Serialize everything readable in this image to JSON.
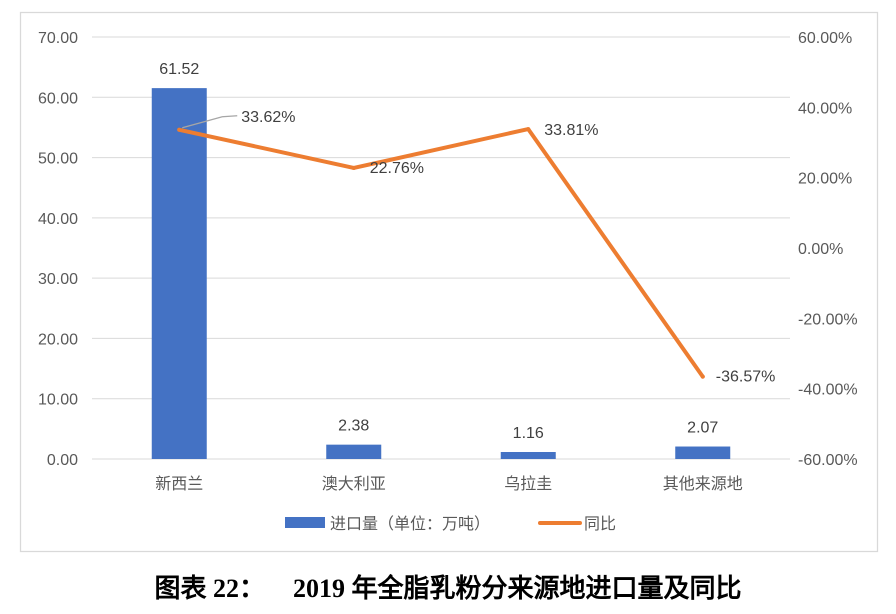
{
  "figure_caption": {
    "label": "图表 22：",
    "text": "2019 年全脂乳粉分来源地进口量及同比"
  },
  "chart_data": {
    "type": "bar",
    "title": "",
    "xlabel": "",
    "ylabel": "",
    "categories": [
      "新西兰",
      "澳大利亚",
      "乌拉圭",
      "其他来源地"
    ],
    "series": [
      {
        "name": "进口量（单位：万吨）",
        "type": "bar",
        "axis": "left",
        "color": "#4472C4",
        "values": [
          61.52,
          2.38,
          1.16,
          2.07
        ],
        "data_labels": [
          "61.52",
          "2.38",
          "1.16",
          "2.07"
        ]
      },
      {
        "name": "同比",
        "type": "line",
        "axis": "right",
        "color": "#ED7D31",
        "values": [
          33.62,
          22.76,
          33.81,
          -36.57
        ],
        "data_labels": [
          "33.62%",
          "22.76%",
          "33.81%",
          "-36.57%"
        ]
      }
    ],
    "y_axis": {
      "range": [
        0,
        70
      ],
      "ticks": [
        0,
        10,
        20,
        30,
        40,
        50,
        60,
        70
      ],
      "tick_labels": [
        "0.00",
        "10.00",
        "20.00",
        "30.00",
        "40.00",
        "50.00",
        "60.00",
        "70.00"
      ]
    },
    "y2_axis": {
      "range": [
        -60,
        60
      ],
      "ticks": [
        -60,
        -40,
        -20,
        0,
        20,
        40,
        60
      ],
      "tick_labels": [
        "-60.00%",
        "-40.00%",
        "-20.00%",
        "0.00%",
        "20.00%",
        "40.00%",
        "60.00%"
      ]
    },
    "grid": true,
    "legend_position": "bottom",
    "colors": {
      "text": "#595959",
      "grid": "#D9D9D9",
      "frame": "#D9D9D9",
      "leader": "#A6A6A6"
    }
  }
}
